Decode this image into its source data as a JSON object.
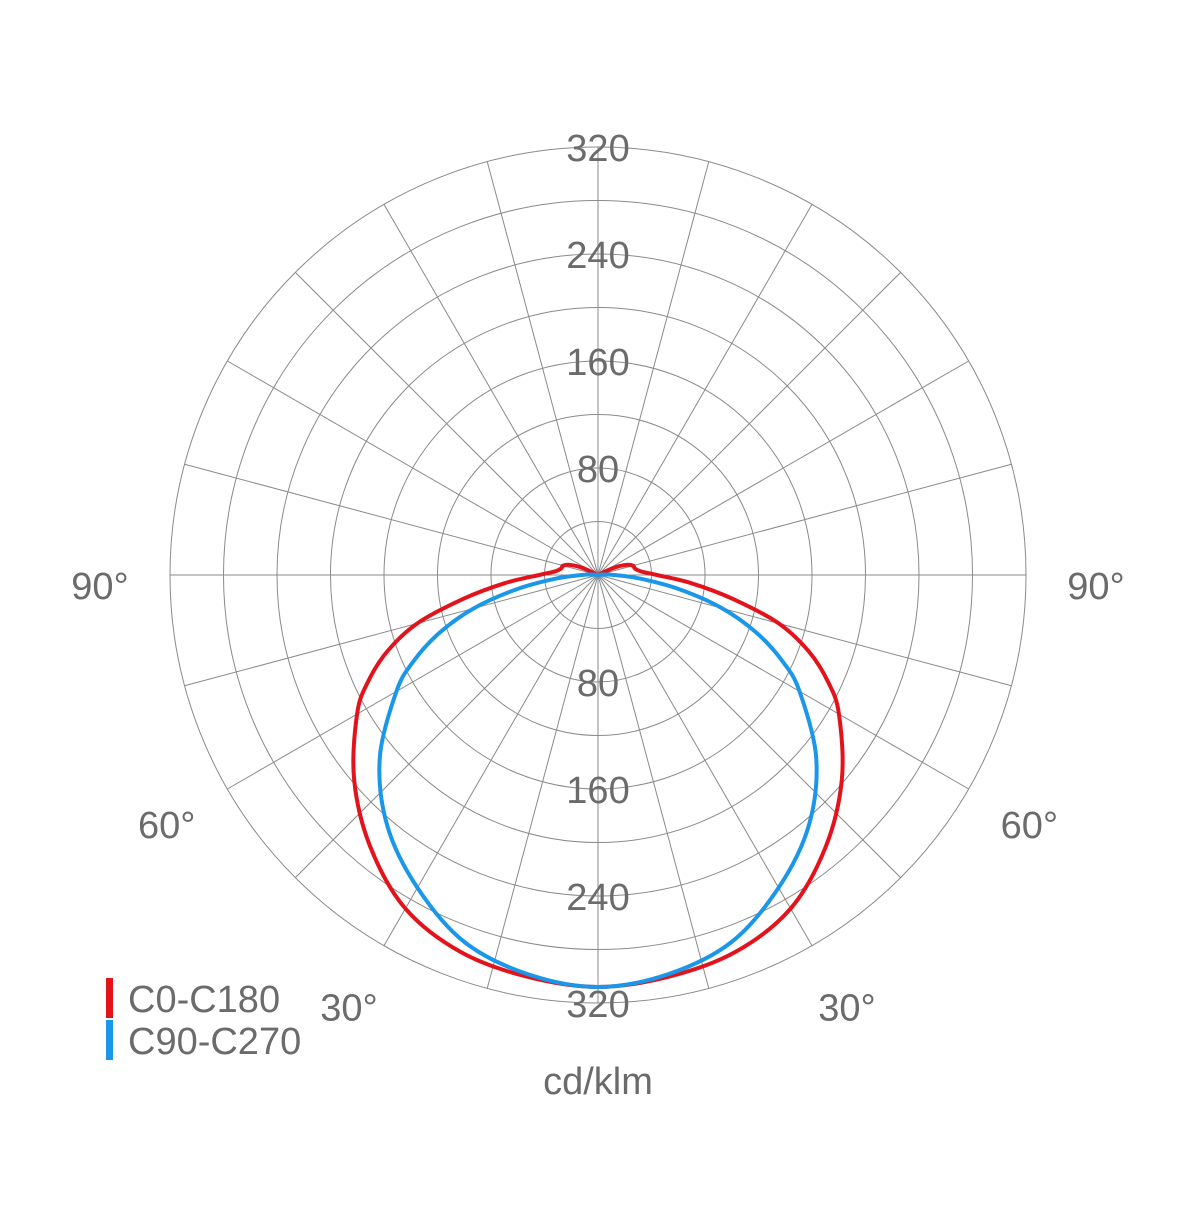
{
  "chart_data": {
    "type": "polar",
    "unit": "cd/klm",
    "r_max": 320,
    "ring_labels": [
      "80",
      "160",
      "240",
      "320"
    ],
    "ring_values": [
      80,
      160,
      240,
      320
    ],
    "minor_ring_step": 40,
    "spoke_step_deg": 15,
    "angle_labels": [
      {
        "text": "90°",
        "angle": 90,
        "side": "left"
      },
      {
        "text": "90°",
        "angle": 90,
        "side": "right"
      },
      {
        "text": "60°",
        "angle": 60,
        "side": "left"
      },
      {
        "text": "60°",
        "angle": 60,
        "side": "right"
      },
      {
        "text": "30°",
        "angle": 30,
        "side": "left"
      },
      {
        "text": "30°",
        "angle": 30,
        "side": "right"
      }
    ],
    "series": [
      {
        "name": "C0-C180",
        "color": "#e3131b",
        "angles": [
          0,
          10,
          20,
          30,
          40,
          50,
          60,
          65,
          70,
          75,
          80,
          85,
          90,
          95,
          100,
          105,
          110,
          115,
          120
        ],
        "values": [
          308,
          305,
          300,
          288,
          265,
          238,
          208,
          190,
          168,
          140,
          102,
          70,
          44,
          32,
          28,
          27,
          22,
          12,
          0
        ]
      },
      {
        "name": "C90-C270",
        "color": "#1a97e8",
        "angles": [
          0,
          10,
          20,
          30,
          40,
          50,
          60,
          65,
          70,
          75,
          80,
          85,
          90,
          95,
          100
        ],
        "values": [
          308,
          303,
          292,
          270,
          245,
          213,
          174,
          152,
          126,
          96,
          62,
          32,
          12,
          4,
          0
        ]
      }
    ]
  }
}
